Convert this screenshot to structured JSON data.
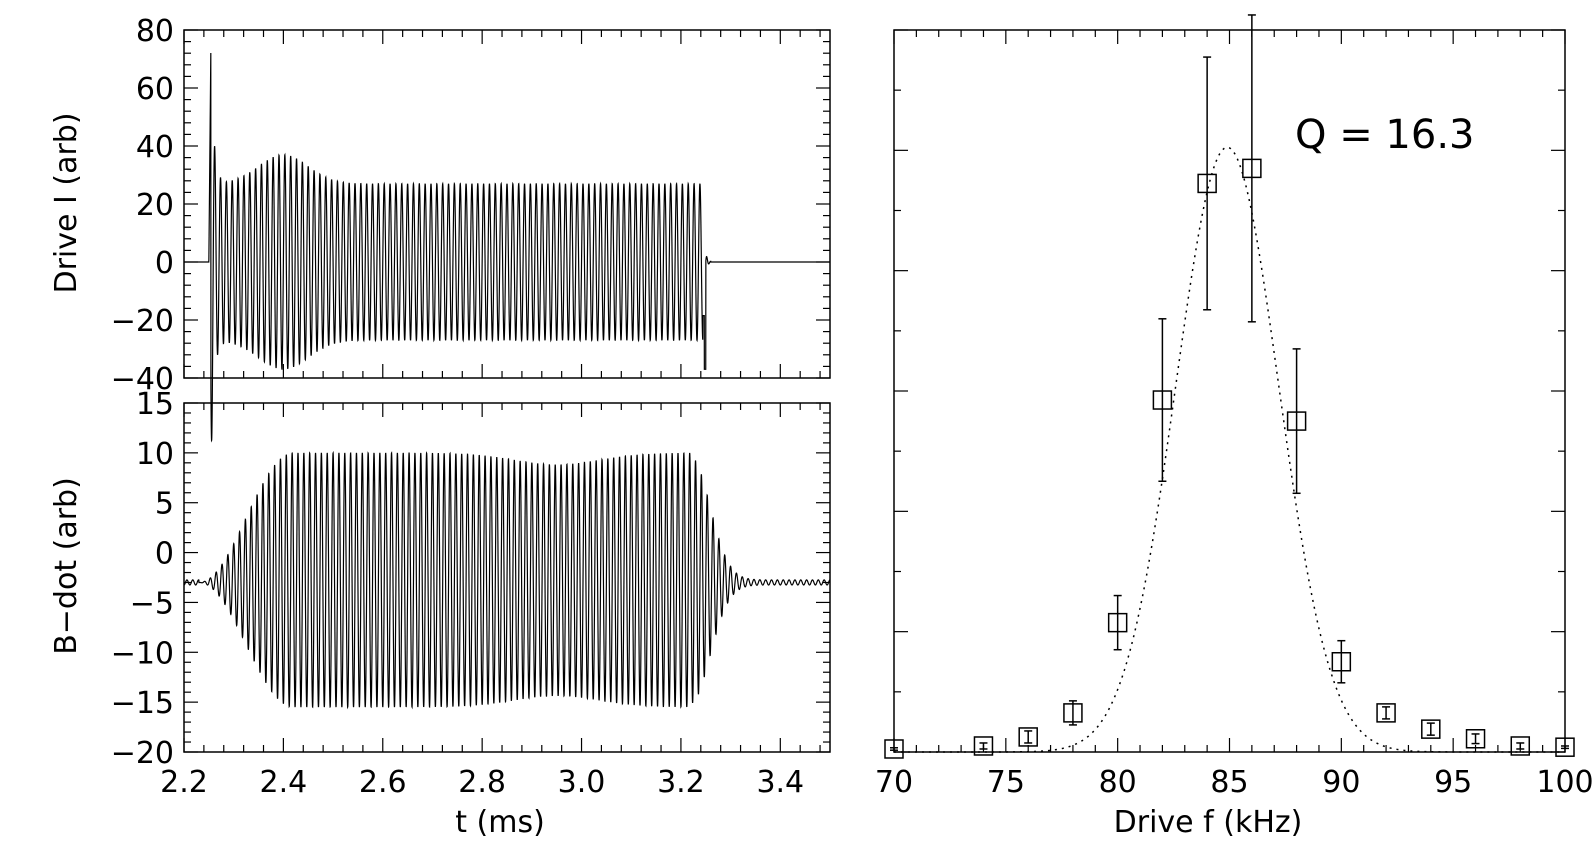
{
  "chart_data": [
    {
      "type": "line",
      "title": "",
      "xlabel": "",
      "ylabel": "Drive I (arb)",
      "xlim": [
        2.2,
        3.5
      ],
      "ylim": [
        -40,
        80
      ],
      "x_ticks": [
        2.2,
        2.4,
        2.6,
        2.8,
        3.0,
        3.2,
        3.4
      ],
      "y_ticks": [
        -40,
        -20,
        0,
        20,
        40,
        60,
        80
      ],
      "y_tick_labels": [
        "−40",
        "−20",
        "0",
        "20",
        "40",
        "60",
        "80"
      ],
      "series": [
        {
          "description_values": {
            "t_start_ms": 2.25,
            "t_end_ms": 3.25,
            "initial_spike_peak": 73,
            "steady_amplitude": 27,
            "early_envelope_peak": 37,
            "early_envelope_peak_time_ms": 2.4,
            "final_negative_spike": -37
          }
        }
      ]
    },
    {
      "type": "line",
      "title": "",
      "xlabel": "t (ms)",
      "ylabel": "B−dot (arb)",
      "xlim": [
        2.2,
        3.5
      ],
      "ylim": [
        -20,
        15
      ],
      "x_ticks": [
        2.2,
        2.4,
        2.6,
        2.8,
        3.0,
        3.2,
        3.4
      ],
      "x_tick_labels": [
        "2.2",
        "2.4",
        "2.6",
        "2.8",
        "3.0",
        "3.2",
        "3.4"
      ],
      "y_ticks": [
        -20,
        -15,
        -10,
        -5,
        0,
        5,
        10,
        15
      ],
      "y_tick_labels": [
        "−20",
        "−15",
        "−10",
        "−5",
        "0",
        "5",
        "10",
        "15"
      ],
      "series": [
        {
          "description_values": {
            "baseline": -3,
            "envelope_max": 10,
            "envelope_min": -15.5,
            "t_rise_ms": 2.3,
            "t_decay_ms": 3.3
          }
        }
      ]
    },
    {
      "type": "scatter",
      "title": "",
      "xlabel": "Drive f (kHz)",
      "ylabel": "",
      "xlim": [
        70,
        100
      ],
      "ylim": [
        0,
        12
      ],
      "x_ticks": [
        70,
        75,
        80,
        85,
        90,
        95,
        100
      ],
      "annotation": "Q = 16.3",
      "points": [
        {
          "x": 70,
          "y": 0.05,
          "err": 0.02
        },
        {
          "x": 74,
          "y": 0.1,
          "err": 0.05
        },
        {
          "x": 76,
          "y": 0.25,
          "err": 0.1
        },
        {
          "x": 78,
          "y": 0.65,
          "err": 0.2
        },
        {
          "x": 80,
          "y": 2.15,
          "err": 0.45
        },
        {
          "x": 82,
          "y": 5.85,
          "err": 1.35
        },
        {
          "x": 84,
          "y": 9.45,
          "err": 2.1
        },
        {
          "x": 86,
          "y": 9.7,
          "err": 2.55
        },
        {
          "x": 88,
          "y": 5.5,
          "err": 1.2
        },
        {
          "x": 90,
          "y": 1.5,
          "err": 0.35
        },
        {
          "x": 92,
          "y": 0.65,
          "err": 0.1
        },
        {
          "x": 94,
          "y": 0.38,
          "err": 0.1
        },
        {
          "x": 96,
          "y": 0.22,
          "err": 0.08
        },
        {
          "x": 98,
          "y": 0.1,
          "err": 0.05
        },
        {
          "x": 100,
          "y": 0.08,
          "err": 0.02
        }
      ],
      "fit": {
        "style": "dotted",
        "center": 84.9,
        "peak": 10.05,
        "width_sigma": 2.3
      }
    }
  ]
}
